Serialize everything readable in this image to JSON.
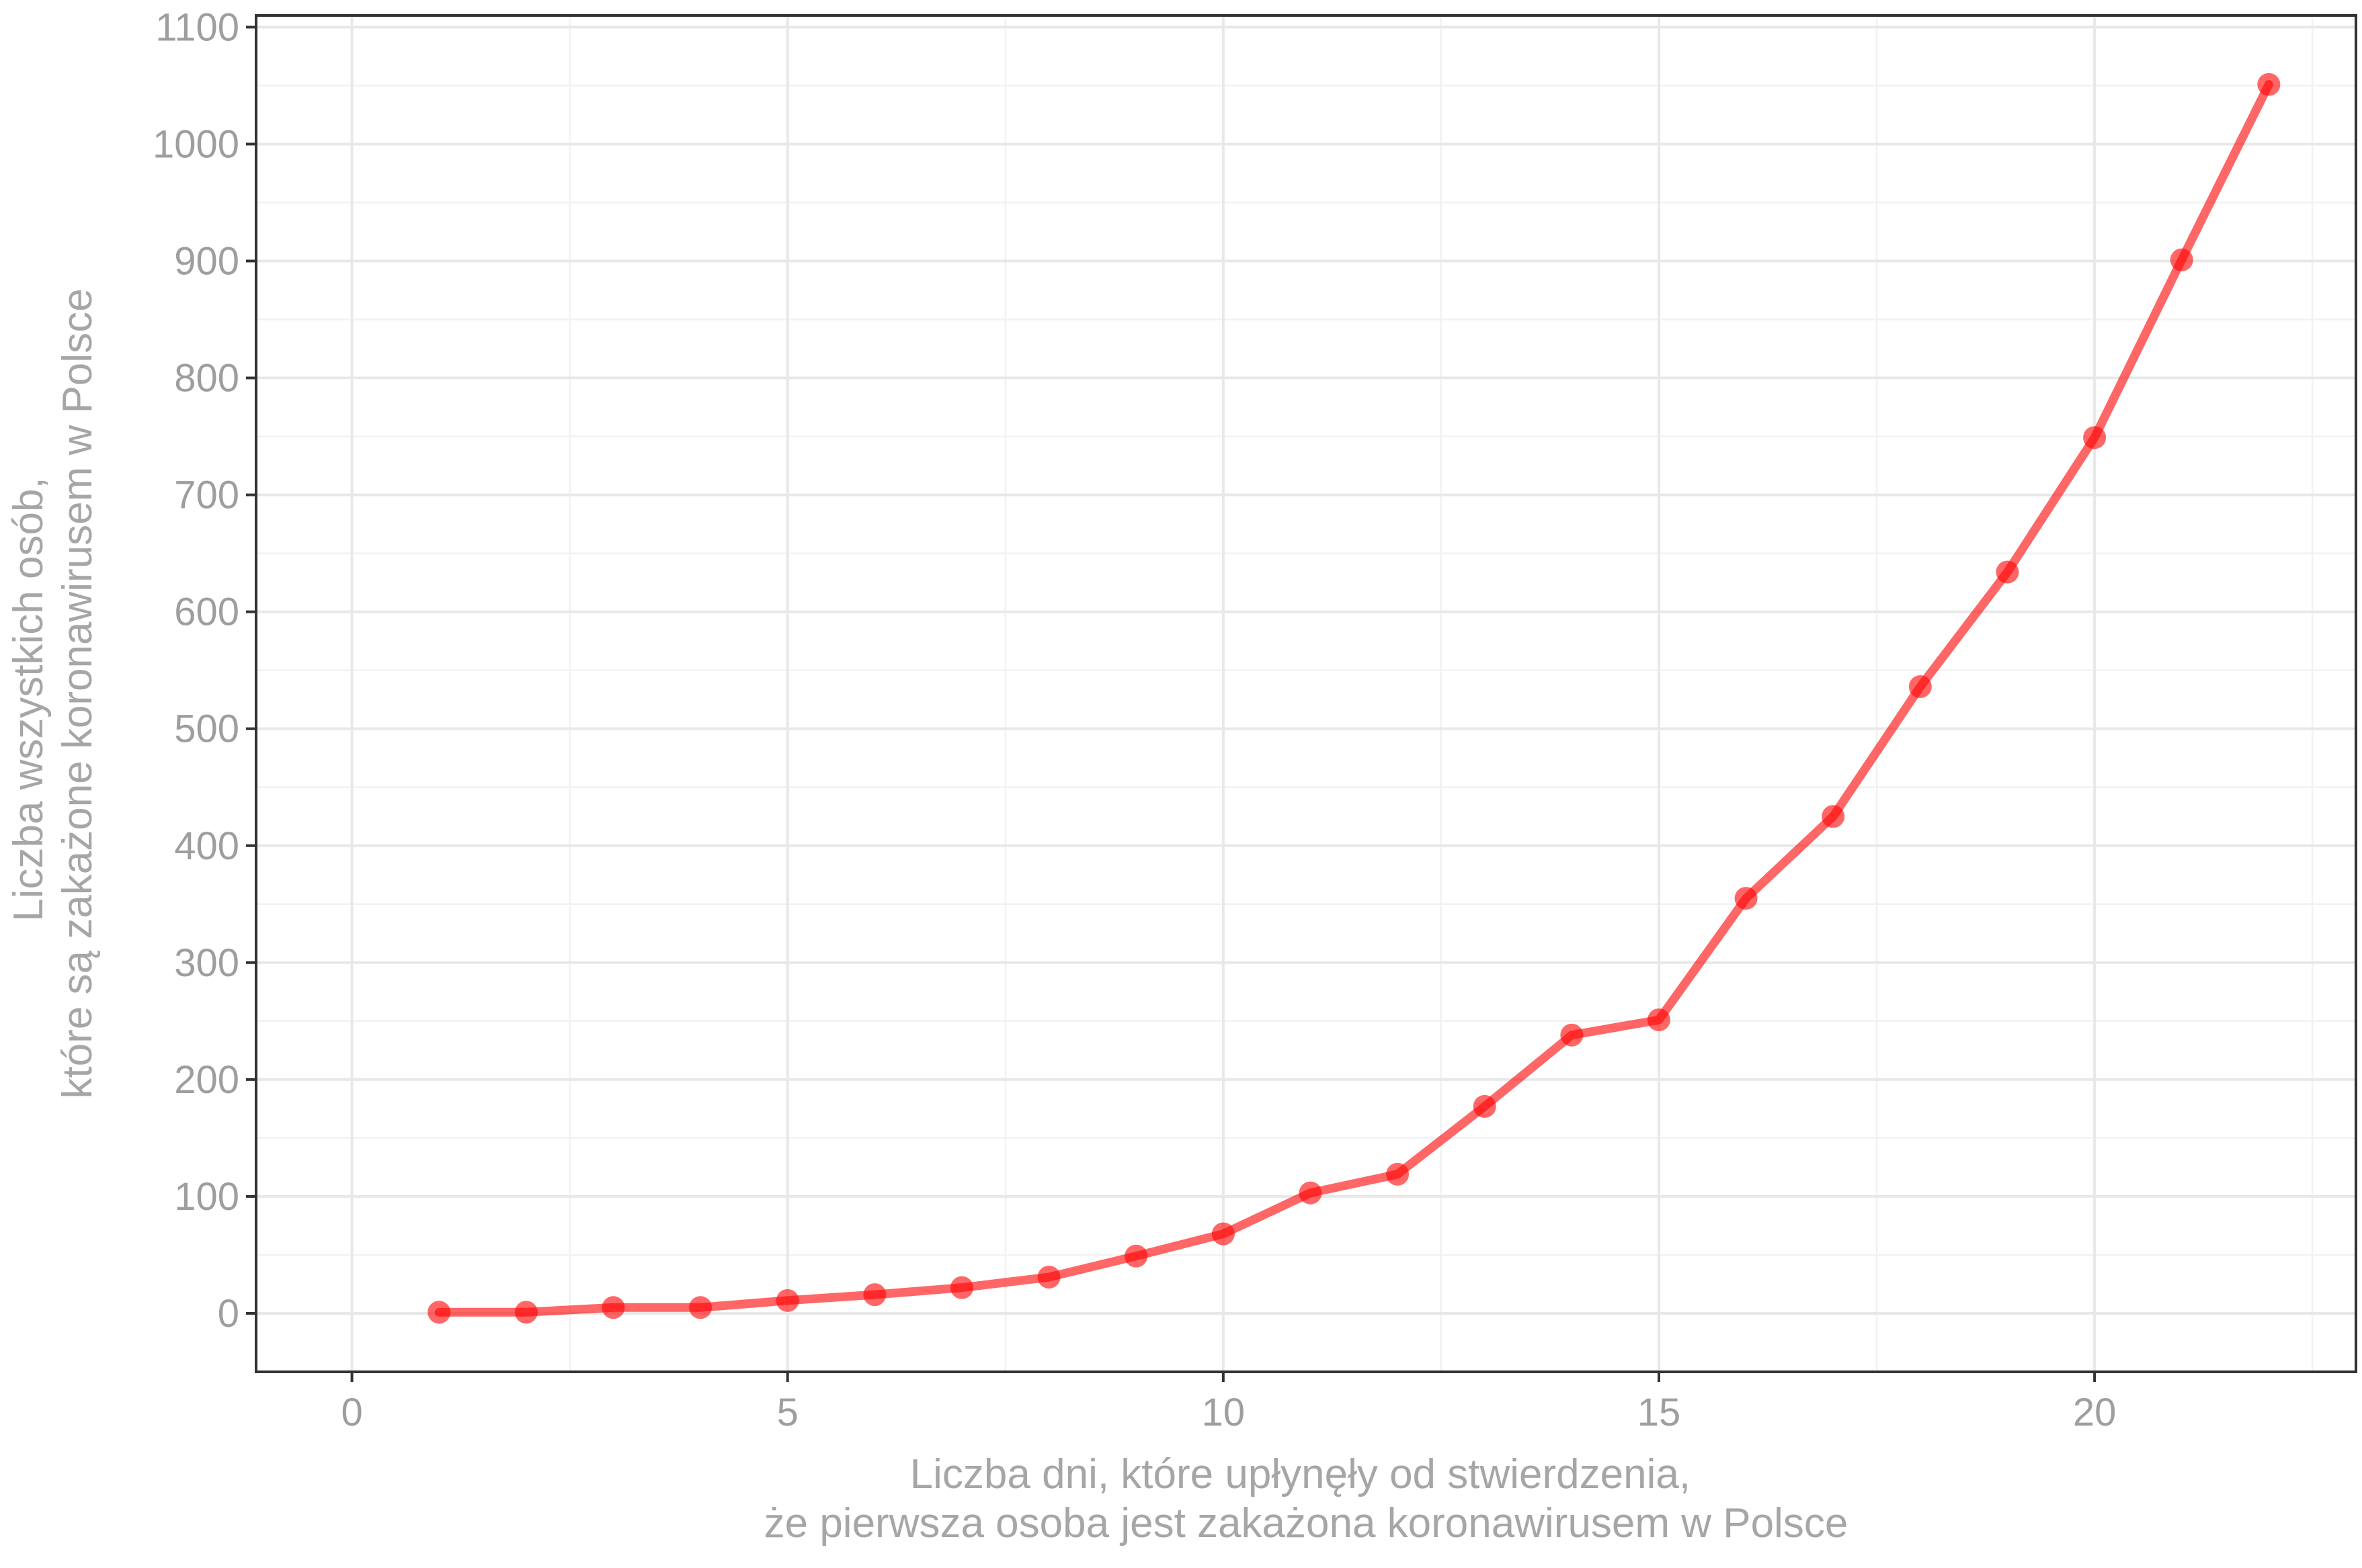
{
  "chart_data": {
    "type": "line",
    "title": "",
    "xlabel": [
      "Liczba dni, które upłynęły od stwierdzenia,",
      "że pierwsza osoba jest zakażona koronawirusem w Polsce"
    ],
    "ylabel": [
      "Liczba wszystkich osób,",
      "które są zakażone koronawirusem w Polsce"
    ],
    "xlim": [
      -1.1,
      23
    ],
    "ylim": [
      -50,
      1110
    ],
    "x_ticks": [
      0,
      5,
      10,
      15,
      20
    ],
    "y_ticks": [
      0,
      100,
      200,
      300,
      400,
      500,
      600,
      700,
      800,
      900,
      1000,
      1100
    ],
    "grid": true,
    "series": [
      {
        "color": "#ff0000",
        "x": [
          1,
          2,
          3,
          4,
          5,
          6,
          7,
          8,
          9,
          10,
          11,
          12,
          13,
          14,
          15,
          16,
          17,
          18,
          19,
          20,
          21,
          22
        ],
        "y": [
          1,
          1,
          5,
          5,
          11,
          16,
          22,
          31,
          49,
          68,
          103,
          119,
          177,
          238,
          251,
          355,
          425,
          536,
          634,
          749,
          901,
          1051
        ]
      }
    ]
  }
}
